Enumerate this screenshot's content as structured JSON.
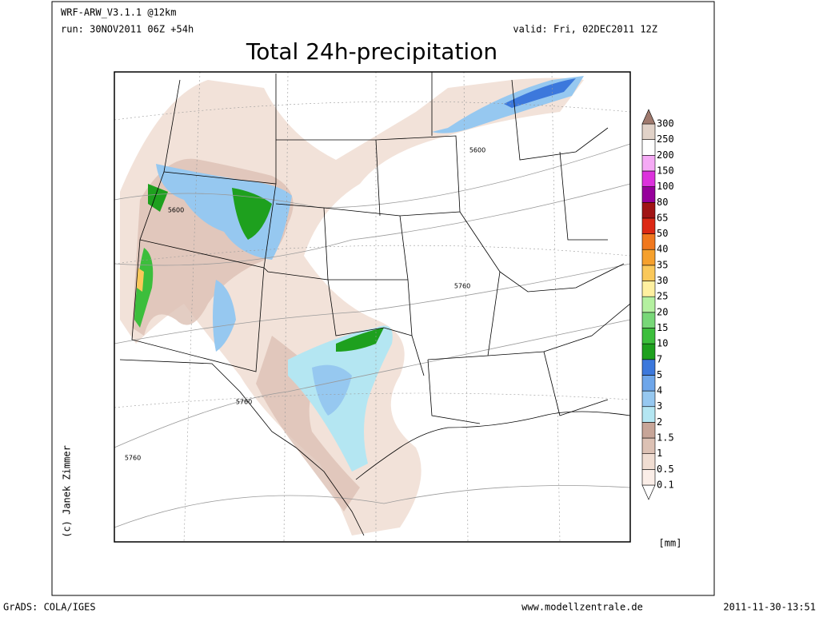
{
  "header": {
    "model": "WRF-ARW_V3.1.1 @12km",
    "run": "run: 30NOV2011 06Z +54h",
    "valid": "valid: Fri, 02DEC2011 12Z",
    "title": "Total 24h-precipitation"
  },
  "map": {
    "contour_labels": [
      "5600",
      "5600",
      "5760",
      "5760",
      "5760"
    ],
    "credit": "(c) Janek Zimmer"
  },
  "legend": {
    "unit": "[mm]",
    "labels": [
      "0.1",
      "0.5",
      "1",
      "1.5",
      "2",
      "3",
      "4",
      "5",
      "7",
      "10",
      "15",
      "20",
      "25",
      "30",
      "35",
      "40",
      "50",
      "65",
      "80",
      "100",
      "150",
      "200",
      "250",
      "300"
    ],
    "colors": [
      "#ffffff",
      "#fbeee8",
      "#f0ddd2",
      "#dcc1b4",
      "#c7a598",
      "#b4e6f2",
      "#96c8f0",
      "#6ea6ea",
      "#3c78dc",
      "#1ea01e",
      "#3cbe3c",
      "#78d778",
      "#b4f0a0",
      "#fff0a0",
      "#fac85a",
      "#f5a02d",
      "#f0781e",
      "#dc2814",
      "#a01414",
      "#96009b",
      "#dc32dc",
      "#f5aaf5",
      "#ffffff",
      "#e1d2c8",
      "#a07a6e"
    ]
  },
  "footer": {
    "left": "GrADS: COLA/IGES",
    "center": "www.modellzentrale.de",
    "right": "2011-11-30-13:51"
  }
}
